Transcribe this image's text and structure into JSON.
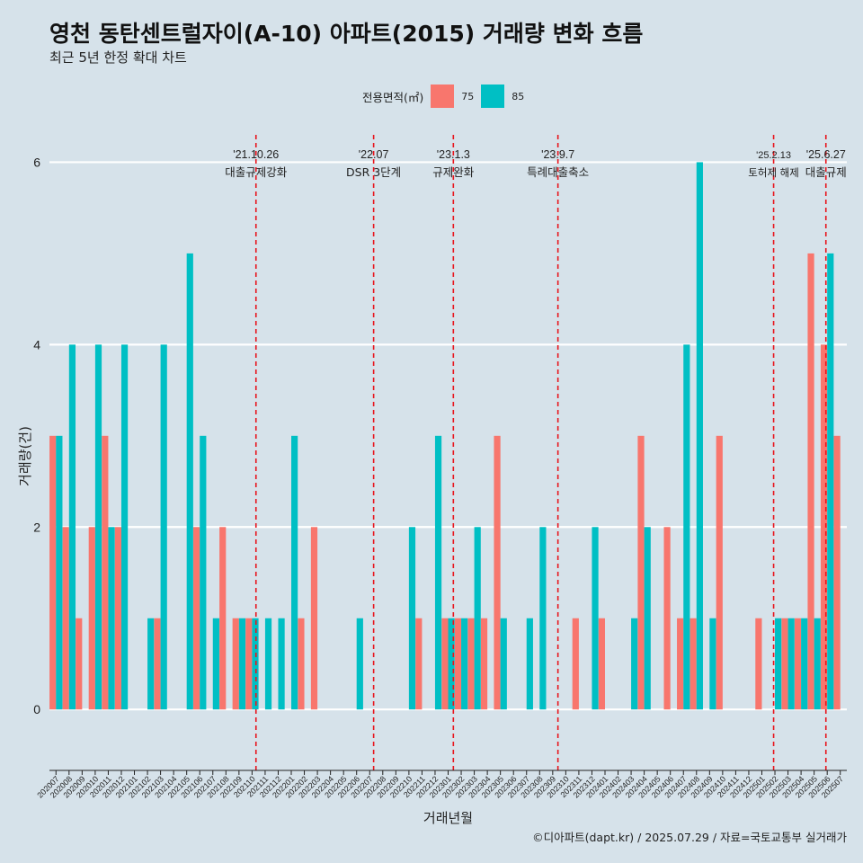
{
  "title": "영천 동탄센트럴자이(A-10) 아파트(2015) 거래량 변화 흐름",
  "subtitle": "최근 5년 한정 확대 차트",
  "caption": "©디아파트(dapt.kr) / 2025.07.29 / 자료=국토교통부 실거래가",
  "legend": {
    "title": "전용면적(㎡)",
    "items": [
      {
        "label": "75",
        "color": "#f8766d"
      },
      {
        "label": "85",
        "color": "#00bfc4"
      }
    ]
  },
  "chart_data": {
    "type": "bar",
    "xlabel": "거래년월",
    "ylabel": "거래량(건)",
    "ylim": [
      -0.55,
      6.3
    ],
    "yticks": [
      0,
      2,
      4,
      6
    ],
    "categories": [
      "202007",
      "202008",
      "202009",
      "202010",
      "202011",
      "202012",
      "202101",
      "202102",
      "202103",
      "202104",
      "202105",
      "202106",
      "202107",
      "202108",
      "202109",
      "202110",
      "202111",
      "202112",
      "202201",
      "202202",
      "202203",
      "202204",
      "202205",
      "202206",
      "202207",
      "202208",
      "202209",
      "202210",
      "202211",
      "202212",
      "202301",
      "202302",
      "202303",
      "202304",
      "202305",
      "202306",
      "202307",
      "202308",
      "202309",
      "202310",
      "202311",
      "202312",
      "202401",
      "202402",
      "202403",
      "202404",
      "202405",
      "202406",
      "202407",
      "202408",
      "202409",
      "202410",
      "202411",
      "202412",
      "202501",
      "202502",
      "202503",
      "202504",
      "202505",
      "202506",
      "202507"
    ],
    "series": [
      {
        "name": "75",
        "color": "#f8766d",
        "values": [
          3,
          2,
          1,
          2,
          3,
          2,
          0,
          0,
          1,
          0,
          0,
          2,
          0,
          2,
          1,
          1,
          0,
          0,
          0,
          1,
          2,
          0,
          0,
          0,
          0,
          0,
          0,
          0,
          1,
          0,
          1,
          1,
          1,
          1,
          3,
          0,
          0,
          0,
          0,
          0,
          1,
          0,
          1,
          0,
          0,
          3,
          0,
          2,
          1,
          1,
          0,
          3,
          0,
          0,
          1,
          0,
          1,
          1,
          5,
          4,
          3
        ]
      },
      {
        "name": "85",
        "color": "#00bfc4",
        "values": [
          3,
          4,
          0,
          4,
          2,
          4,
          0,
          1,
          4,
          0,
          5,
          3,
          1,
          0,
          1,
          1,
          1,
          1,
          3,
          0,
          0,
          0,
          0,
          1,
          0,
          0,
          0,
          2,
          0,
          3,
          1,
          1,
          2,
          0,
          1,
          0,
          1,
          2,
          0,
          0,
          0,
          2,
          0,
          0,
          1,
          2,
          0,
          0,
          4,
          6,
          1,
          0,
          0,
          0,
          0,
          1,
          1,
          1,
          1,
          5,
          0
        ]
      }
    ],
    "events": [
      {
        "date": "'21.10.26",
        "label": "대출규제강화",
        "x": 15.8
      },
      {
        "date": "'22.07",
        "label": "DSR 3단계",
        "x": 24.8
      },
      {
        "date": "'23.1.3",
        "label": "규제완화",
        "x": 30.9
      },
      {
        "date": "'23.9.7",
        "label": "특례대출축소",
        "x": 38.9
      },
      {
        "date": "'25.2.13",
        "label": "토허제 해제",
        "x": 55.4
      },
      {
        "date": "'25.6.27",
        "label": "대출규제",
        "x": 59.4
      }
    ]
  }
}
